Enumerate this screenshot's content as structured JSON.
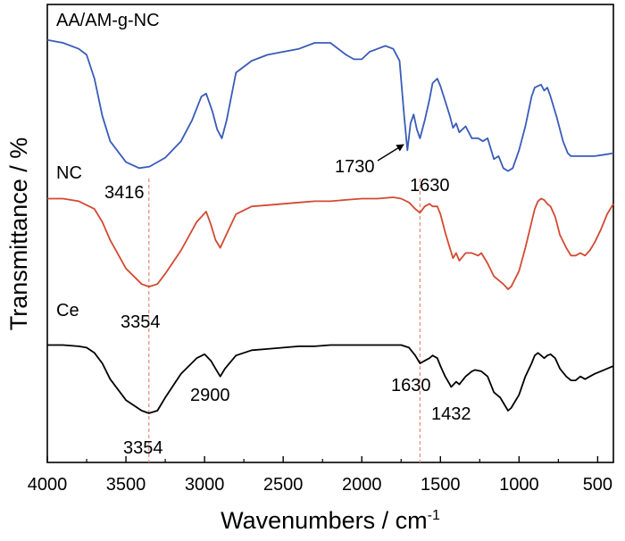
{
  "chart_data": {
    "type": "line",
    "xlabel": "Wavenumbers / cm",
    "xlabel_sup": "-1",
    "ylabel": "Transmittance / %",
    "xlim": [
      4000,
      400
    ],
    "x_reversed": true,
    "xticks": [
      "4000",
      "3500",
      "3000",
      "2500",
      "2000",
      "1500",
      "1000",
      "500"
    ],
    "y_ticks_visible": false,
    "series": [
      {
        "name": "AA/AM-g-NC",
        "color": "#3a5bb8",
        "points": [
          [
            4000,
            96
          ],
          [
            3900,
            94
          ],
          [
            3800,
            90
          ],
          [
            3750,
            86
          ],
          [
            3700,
            70
          ],
          [
            3650,
            45
          ],
          [
            3600,
            28
          ],
          [
            3500,
            14
          ],
          [
            3416,
            10
          ],
          [
            3350,
            11
          ],
          [
            3250,
            17
          ],
          [
            3150,
            28
          ],
          [
            3080,
            42
          ],
          [
            3020,
            58
          ],
          [
            2990,
            60
          ],
          [
            2950,
            48
          ],
          [
            2920,
            36
          ],
          [
            2890,
            30
          ],
          [
            2860,
            42
          ],
          [
            2800,
            74
          ],
          [
            2700,
            82
          ],
          [
            2600,
            86
          ],
          [
            2500,
            88
          ],
          [
            2400,
            90
          ],
          [
            2300,
            94
          ],
          [
            2200,
            94
          ],
          [
            2100,
            86
          ],
          [
            2050,
            83
          ],
          [
            2000,
            83
          ],
          [
            1950,
            88
          ],
          [
            1900,
            90
          ],
          [
            1850,
            92
          ],
          [
            1800,
            90
          ],
          [
            1760,
            82
          ],
          [
            1730,
            44
          ],
          [
            1710,
            22
          ],
          [
            1690,
            40
          ],
          [
            1670,
            46
          ],
          [
            1650,
            36
          ],
          [
            1630,
            30
          ],
          [
            1600,
            42
          ],
          [
            1570,
            56
          ],
          [
            1550,
            67
          ],
          [
            1520,
            70
          ],
          [
            1500,
            65
          ],
          [
            1470,
            55
          ],
          [
            1440,
            45
          ],
          [
            1420,
            37
          ],
          [
            1400,
            40
          ],
          [
            1380,
            34
          ],
          [
            1340,
            38
          ],
          [
            1300,
            30
          ],
          [
            1260,
            30
          ],
          [
            1230,
            28
          ],
          [
            1200,
            30
          ],
          [
            1160,
            16
          ],
          [
            1130,
            18
          ],
          [
            1100,
            10
          ],
          [
            1070,
            8
          ],
          [
            1040,
            10
          ],
          [
            1000,
            22
          ],
          [
            960,
            38
          ],
          [
            920,
            58
          ],
          [
            900,
            64
          ],
          [
            860,
            66
          ],
          [
            840,
            62
          ],
          [
            820,
            64
          ],
          [
            800,
            58
          ],
          [
            760,
            44
          ],
          [
            720,
            28
          ],
          [
            690,
            20
          ],
          [
            670,
            18
          ],
          [
            650,
            18
          ],
          [
            620,
            18
          ],
          [
            580,
            18
          ],
          [
            520,
            18
          ],
          [
            460,
            19
          ],
          [
            400,
            20
          ]
        ]
      },
      {
        "name": "NC",
        "color": "#d24a32",
        "points": [
          [
            4000,
            90
          ],
          [
            3900,
            90
          ],
          [
            3800,
            88
          ],
          [
            3700,
            82
          ],
          [
            3650,
            72
          ],
          [
            3600,
            58
          ],
          [
            3500,
            36
          ],
          [
            3400,
            24
          ],
          [
            3354,
            22
          ],
          [
            3300,
            24
          ],
          [
            3250,
            32
          ],
          [
            3150,
            50
          ],
          [
            3050,
            72
          ],
          [
            2990,
            80
          ],
          [
            2960,
            70
          ],
          [
            2930,
            58
          ],
          [
            2900,
            52
          ],
          [
            2870,
            60
          ],
          [
            2800,
            78
          ],
          [
            2700,
            84
          ],
          [
            2600,
            85
          ],
          [
            2500,
            86
          ],
          [
            2400,
            87
          ],
          [
            2300,
            88
          ],
          [
            2200,
            88
          ],
          [
            2100,
            89
          ],
          [
            2000,
            90
          ],
          [
            1900,
            90
          ],
          [
            1800,
            91
          ],
          [
            1750,
            90
          ],
          [
            1700,
            87
          ],
          [
            1660,
            82
          ],
          [
            1630,
            79
          ],
          [
            1600,
            84
          ],
          [
            1570,
            86
          ],
          [
            1550,
            84
          ],
          [
            1520,
            84
          ],
          [
            1500,
            78
          ],
          [
            1470,
            64
          ],
          [
            1440,
            52
          ],
          [
            1420,
            44
          ],
          [
            1400,
            48
          ],
          [
            1380,
            42
          ],
          [
            1340,
            48
          ],
          [
            1300,
            48
          ],
          [
            1260,
            46
          ],
          [
            1240,
            48
          ],
          [
            1200,
            40
          ],
          [
            1160,
            30
          ],
          [
            1120,
            26
          ],
          [
            1100,
            24
          ],
          [
            1070,
            20
          ],
          [
            1050,
            22
          ],
          [
            1000,
            34
          ],
          [
            960,
            52
          ],
          [
            920,
            72
          ],
          [
            900,
            82
          ],
          [
            880,
            88
          ],
          [
            860,
            90
          ],
          [
            840,
            89
          ],
          [
            820,
            86
          ],
          [
            800,
            84
          ],
          [
            770,
            76
          ],
          [
            740,
            62
          ],
          [
            700,
            52
          ],
          [
            670,
            46
          ],
          [
            640,
            46
          ],
          [
            610,
            48
          ],
          [
            580,
            46
          ],
          [
            550,
            50
          ],
          [
            520,
            56
          ],
          [
            480,
            66
          ],
          [
            440,
            78
          ],
          [
            400,
            86
          ]
        ]
      },
      {
        "name": "Ce",
        "color": "#000000",
        "points": [
          [
            4000,
            82
          ],
          [
            3900,
            82
          ],
          [
            3800,
            81
          ],
          [
            3750,
            80
          ],
          [
            3700,
            76
          ],
          [
            3650,
            68
          ],
          [
            3600,
            56
          ],
          [
            3500,
            40
          ],
          [
            3400,
            32
          ],
          [
            3354,
            30
          ],
          [
            3300,
            32
          ],
          [
            3250,
            42
          ],
          [
            3150,
            60
          ],
          [
            3050,
            72
          ],
          [
            3000,
            75
          ],
          [
            2960,
            70
          ],
          [
            2930,
            64
          ],
          [
            2900,
            58
          ],
          [
            2870,
            64
          ],
          [
            2800,
            74
          ],
          [
            2700,
            78
          ],
          [
            2600,
            79
          ],
          [
            2500,
            80
          ],
          [
            2400,
            81
          ],
          [
            2300,
            81
          ],
          [
            2200,
            82
          ],
          [
            2100,
            82
          ],
          [
            2000,
            82
          ],
          [
            1900,
            82
          ],
          [
            1800,
            82
          ],
          [
            1750,
            82
          ],
          [
            1700,
            80
          ],
          [
            1660,
            74
          ],
          [
            1630,
            68
          ],
          [
            1600,
            70
          ],
          [
            1570,
            72
          ],
          [
            1550,
            74
          ],
          [
            1520,
            72
          ],
          [
            1500,
            66
          ],
          [
            1470,
            58
          ],
          [
            1440,
            52
          ],
          [
            1432,
            50
          ],
          [
            1400,
            54
          ],
          [
            1380,
            52
          ],
          [
            1340,
            58
          ],
          [
            1300,
            62
          ],
          [
            1280,
            63
          ],
          [
            1240,
            62
          ],
          [
            1200,
            58
          ],
          [
            1160,
            46
          ],
          [
            1120,
            42
          ],
          [
            1100,
            38
          ],
          [
            1070,
            32
          ],
          [
            1050,
            34
          ],
          [
            1000,
            44
          ],
          [
            960,
            58
          ],
          [
            920,
            68
          ],
          [
            900,
            74
          ],
          [
            880,
            76
          ],
          [
            860,
            74
          ],
          [
            840,
            72
          ],
          [
            820,
            74
          ],
          [
            800,
            75
          ],
          [
            770,
            72
          ],
          [
            740,
            64
          ],
          [
            700,
            58
          ],
          [
            670,
            55
          ],
          [
            640,
            55
          ],
          [
            610,
            58
          ],
          [
            580,
            56
          ],
          [
            550,
            58
          ],
          [
            520,
            60
          ],
          [
            480,
            62
          ],
          [
            440,
            64
          ],
          [
            400,
            66
          ]
        ]
      }
    ],
    "reference_lines": [
      {
        "x": 3354,
        "color": "#e08a78",
        "style": "dashed"
      },
      {
        "x": 1630,
        "color": "#e08a78",
        "style": "dashed"
      }
    ],
    "annotations": [
      {
        "text": "3416"
      },
      {
        "text": "1730",
        "arrow": true
      },
      {
        "text": "1630"
      },
      {
        "text": "3354"
      },
      {
        "text": "2900"
      },
      {
        "text": "1630"
      },
      {
        "text": "1432"
      },
      {
        "text": "3354"
      }
    ]
  }
}
